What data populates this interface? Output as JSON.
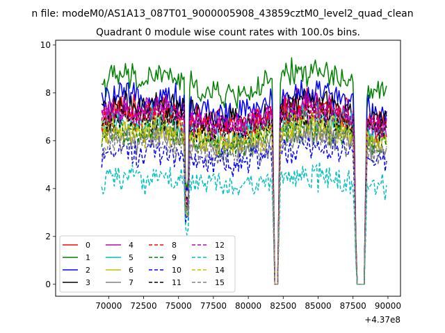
{
  "figure": {
    "suptitle": "n file: modeM0/AS1A13_087T01_9000005908_43859cztM0_level2_quad_clean",
    "axis_offset": "+4.37e8"
  },
  "chart_data": {
    "type": "line",
    "title": "Quadrant 0 module wise count rates with 100.0s bins.",
    "xlabel": "",
    "ylabel": "",
    "xlim": [
      66200,
      90900
    ],
    "ylim": [
      -0.5,
      10.2
    ],
    "grid": false,
    "legend_placement": "lower-left",
    "x_ticks": [
      70000,
      72500,
      75000,
      77500,
      80000,
      82500,
      85000,
      87500,
      90000
    ],
    "x_tick_labels": [
      "70000",
      "72500",
      "75000",
      "77500",
      "80000",
      "82500",
      "85000",
      "87500",
      "90000"
    ],
    "y_ticks": [
      0,
      2,
      4,
      6,
      8,
      10
    ],
    "y_tick_labels": [
      "0",
      "2",
      "4",
      "6",
      "8",
      "10"
    ],
    "x_range": [
      69500,
      89900
    ],
    "bin_width": 100,
    "dips": [
      {
        "x_start": 81750,
        "x_end": 81950,
        "bottom_start": 81850,
        "bottom_end": 82150,
        "recover_end": 82250
      },
      {
        "x_start": 87550,
        "x_end": 87650,
        "bottom_start": 87750,
        "bottom_end": 88350,
        "recover_end": 88450
      }
    ],
    "series": [
      {
        "name": "0",
        "color": "#ff0000",
        "dash": "solid",
        "level": 7.1
      },
      {
        "name": "1",
        "color": "#008000",
        "dash": "solid",
        "level": 8.4
      },
      {
        "name": "2",
        "color": "#0000ff",
        "dash": "solid",
        "level": 7.6
      },
      {
        "name": "3",
        "color": "#000000",
        "dash": "solid",
        "level": 7.2
      },
      {
        "name": "4",
        "color": "#bf00bf",
        "dash": "solid",
        "level": 7.0
      },
      {
        "name": "5",
        "color": "#00bfbf",
        "dash": "solid",
        "level": 6.6
      },
      {
        "name": "6",
        "color": "#bfbf00",
        "dash": "solid",
        "level": 6.3
      },
      {
        "name": "7",
        "color": "#808080",
        "dash": "solid",
        "level": 6.0
      },
      {
        "name": "8",
        "color": "#ff0000",
        "dash": "dashed",
        "level": 6.9
      },
      {
        "name": "9",
        "color": "#008000",
        "dash": "dashed",
        "level": 6.2
      },
      {
        "name": "10",
        "color": "#0000ff",
        "dash": "dashed",
        "level": 5.4
      },
      {
        "name": "11",
        "color": "#000000",
        "dash": "dashed",
        "level": 6.7
      },
      {
        "name": "12",
        "color": "#bf00bf",
        "dash": "dashed",
        "level": 7.0
      },
      {
        "name": "13",
        "color": "#00bfbf",
        "dash": "dashed",
        "level": 4.3
      },
      {
        "name": "14",
        "color": "#bfbf00",
        "dash": "dashed",
        "level": 6.2
      },
      {
        "name": "15",
        "color": "#808080",
        "dash": "dashed",
        "level": 5.8
      }
    ]
  }
}
